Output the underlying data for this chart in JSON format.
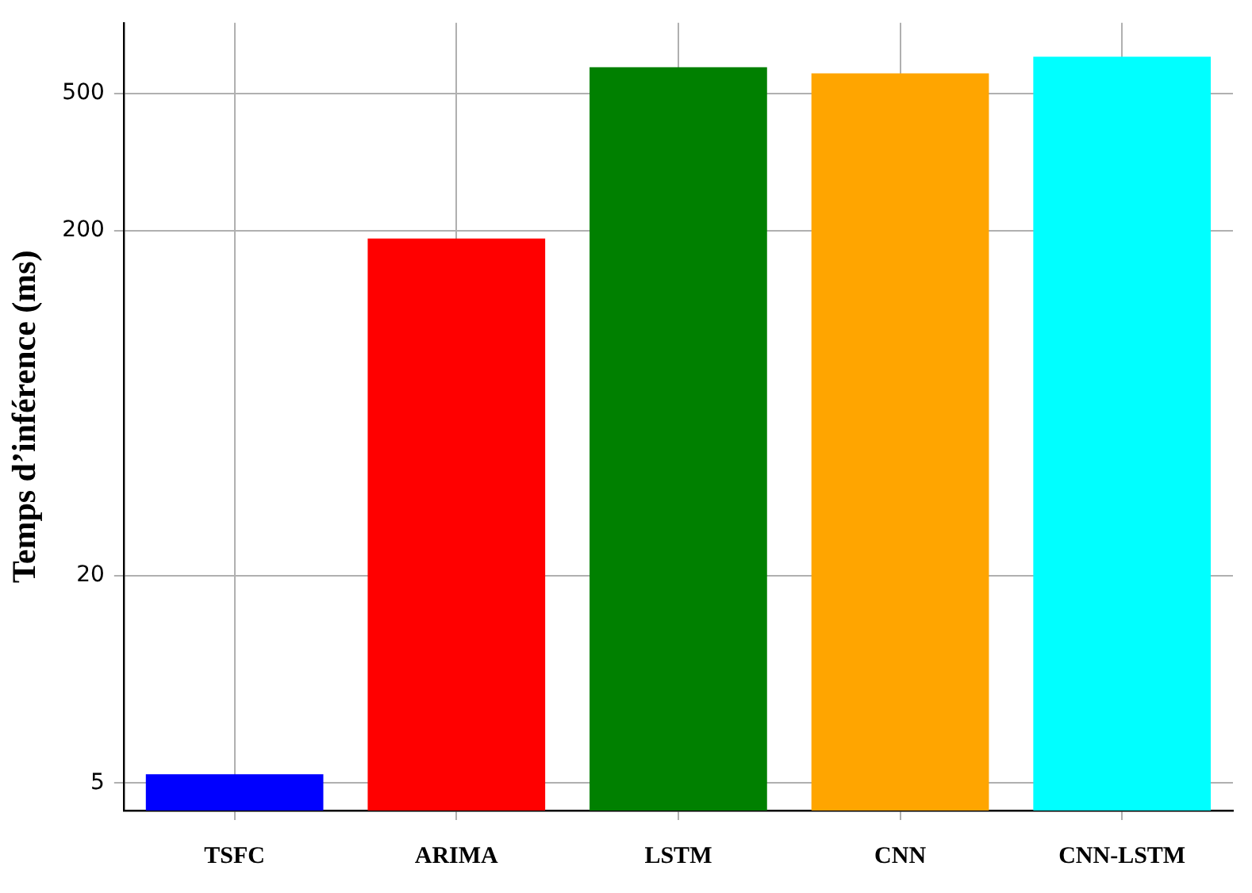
{
  "chart_data": {
    "type": "bar",
    "ylabel": "Temps d’inférence (ms)",
    "categories": [
      "TSFC",
      "ARIMA",
      "LSTM",
      "CNN",
      "CNN-LSTM"
    ],
    "values": [
      5.3,
      190,
      596,
      572,
      640
    ],
    "colors": [
      "#0000ff",
      "#ff0000",
      "#008000",
      "#ffa500",
      "#00ffff"
    ],
    "log": "y",
    "ylim": [
      4.16,
      802
    ],
    "yticks": [
      5,
      20,
      200,
      500
    ],
    "grid": true,
    "legend": false
  }
}
